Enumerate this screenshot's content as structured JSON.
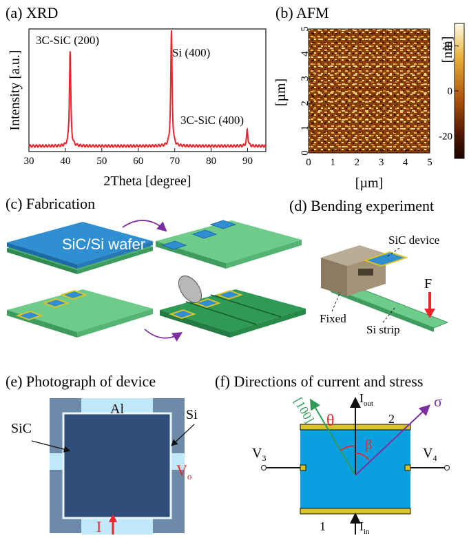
{
  "panels": {
    "a": {
      "title": "(a) XRD"
    },
    "b": {
      "title": "(b) AFM"
    },
    "c": {
      "title": "(c) Fabrication",
      "wafer_label": "SiC/Si wafer"
    },
    "d": {
      "title": "(d) Bending experiment",
      "sic_device": "SiC device",
      "force": "F",
      "fixed": "Fixed",
      "si_strip": "Si strip"
    },
    "e": {
      "title": "(e) Photograph of device",
      "al": "Al",
      "si": "Si",
      "sic": "SiC",
      "vo": "V",
      "vo_sub": "o",
      "current": "I"
    },
    "f": {
      "title": "(f) Directions of current and stress",
      "direction": "[100]",
      "theta": "θ",
      "beta": "β",
      "sigma": "σ",
      "iout": "I",
      "iout_sub": "out",
      "iin": "I",
      "iin_sub": "in",
      "v3": "V",
      "v3_sub": "3",
      "v4": "V",
      "v4_sub": "4",
      "t1": "1",
      "t2": "2"
    }
  },
  "colors": {
    "xrd_line": "#e8262b",
    "wafer_top": "#2f8fd1",
    "green": "#5fbf7f",
    "dark_green": "#2f9a56",
    "arrow": "#7b2fa0",
    "cyan": "#0aa0e0",
    "gold": "#d8c42a"
  },
  "chart_data": [
    {
      "type": "line",
      "title": "(a) XRD",
      "xlabel": "2Theta [degree]",
      "ylabel": "Intensity [a.u.]",
      "xlim": [
        30,
        95
      ],
      "xticks": [
        30,
        40,
        50,
        60,
        70,
        80,
        90
      ],
      "series": [
        {
          "peaks": [
            {
              "x": 41.3,
              "height": 0.82,
              "label": "3C-SiC (200)"
            },
            {
              "x": 69.1,
              "height": 1.0,
              "label": "Si (400)"
            },
            {
              "x": 89.9,
              "height": 0.14,
              "label": "3C-SiC (400)"
            }
          ]
        }
      ]
    },
    {
      "type": "heatmap",
      "title": "(b) AFM",
      "xlabel": "[µm]",
      "ylabel": "[µm]",
      "xlim": [
        0,
        5
      ],
      "ylim": [
        0,
        5
      ],
      "ticks": [
        0,
        1,
        2,
        3,
        4,
        5
      ],
      "colorbar": {
        "label": "[nm]",
        "ticks": [
          20,
          0,
          -20
        ]
      }
    }
  ]
}
